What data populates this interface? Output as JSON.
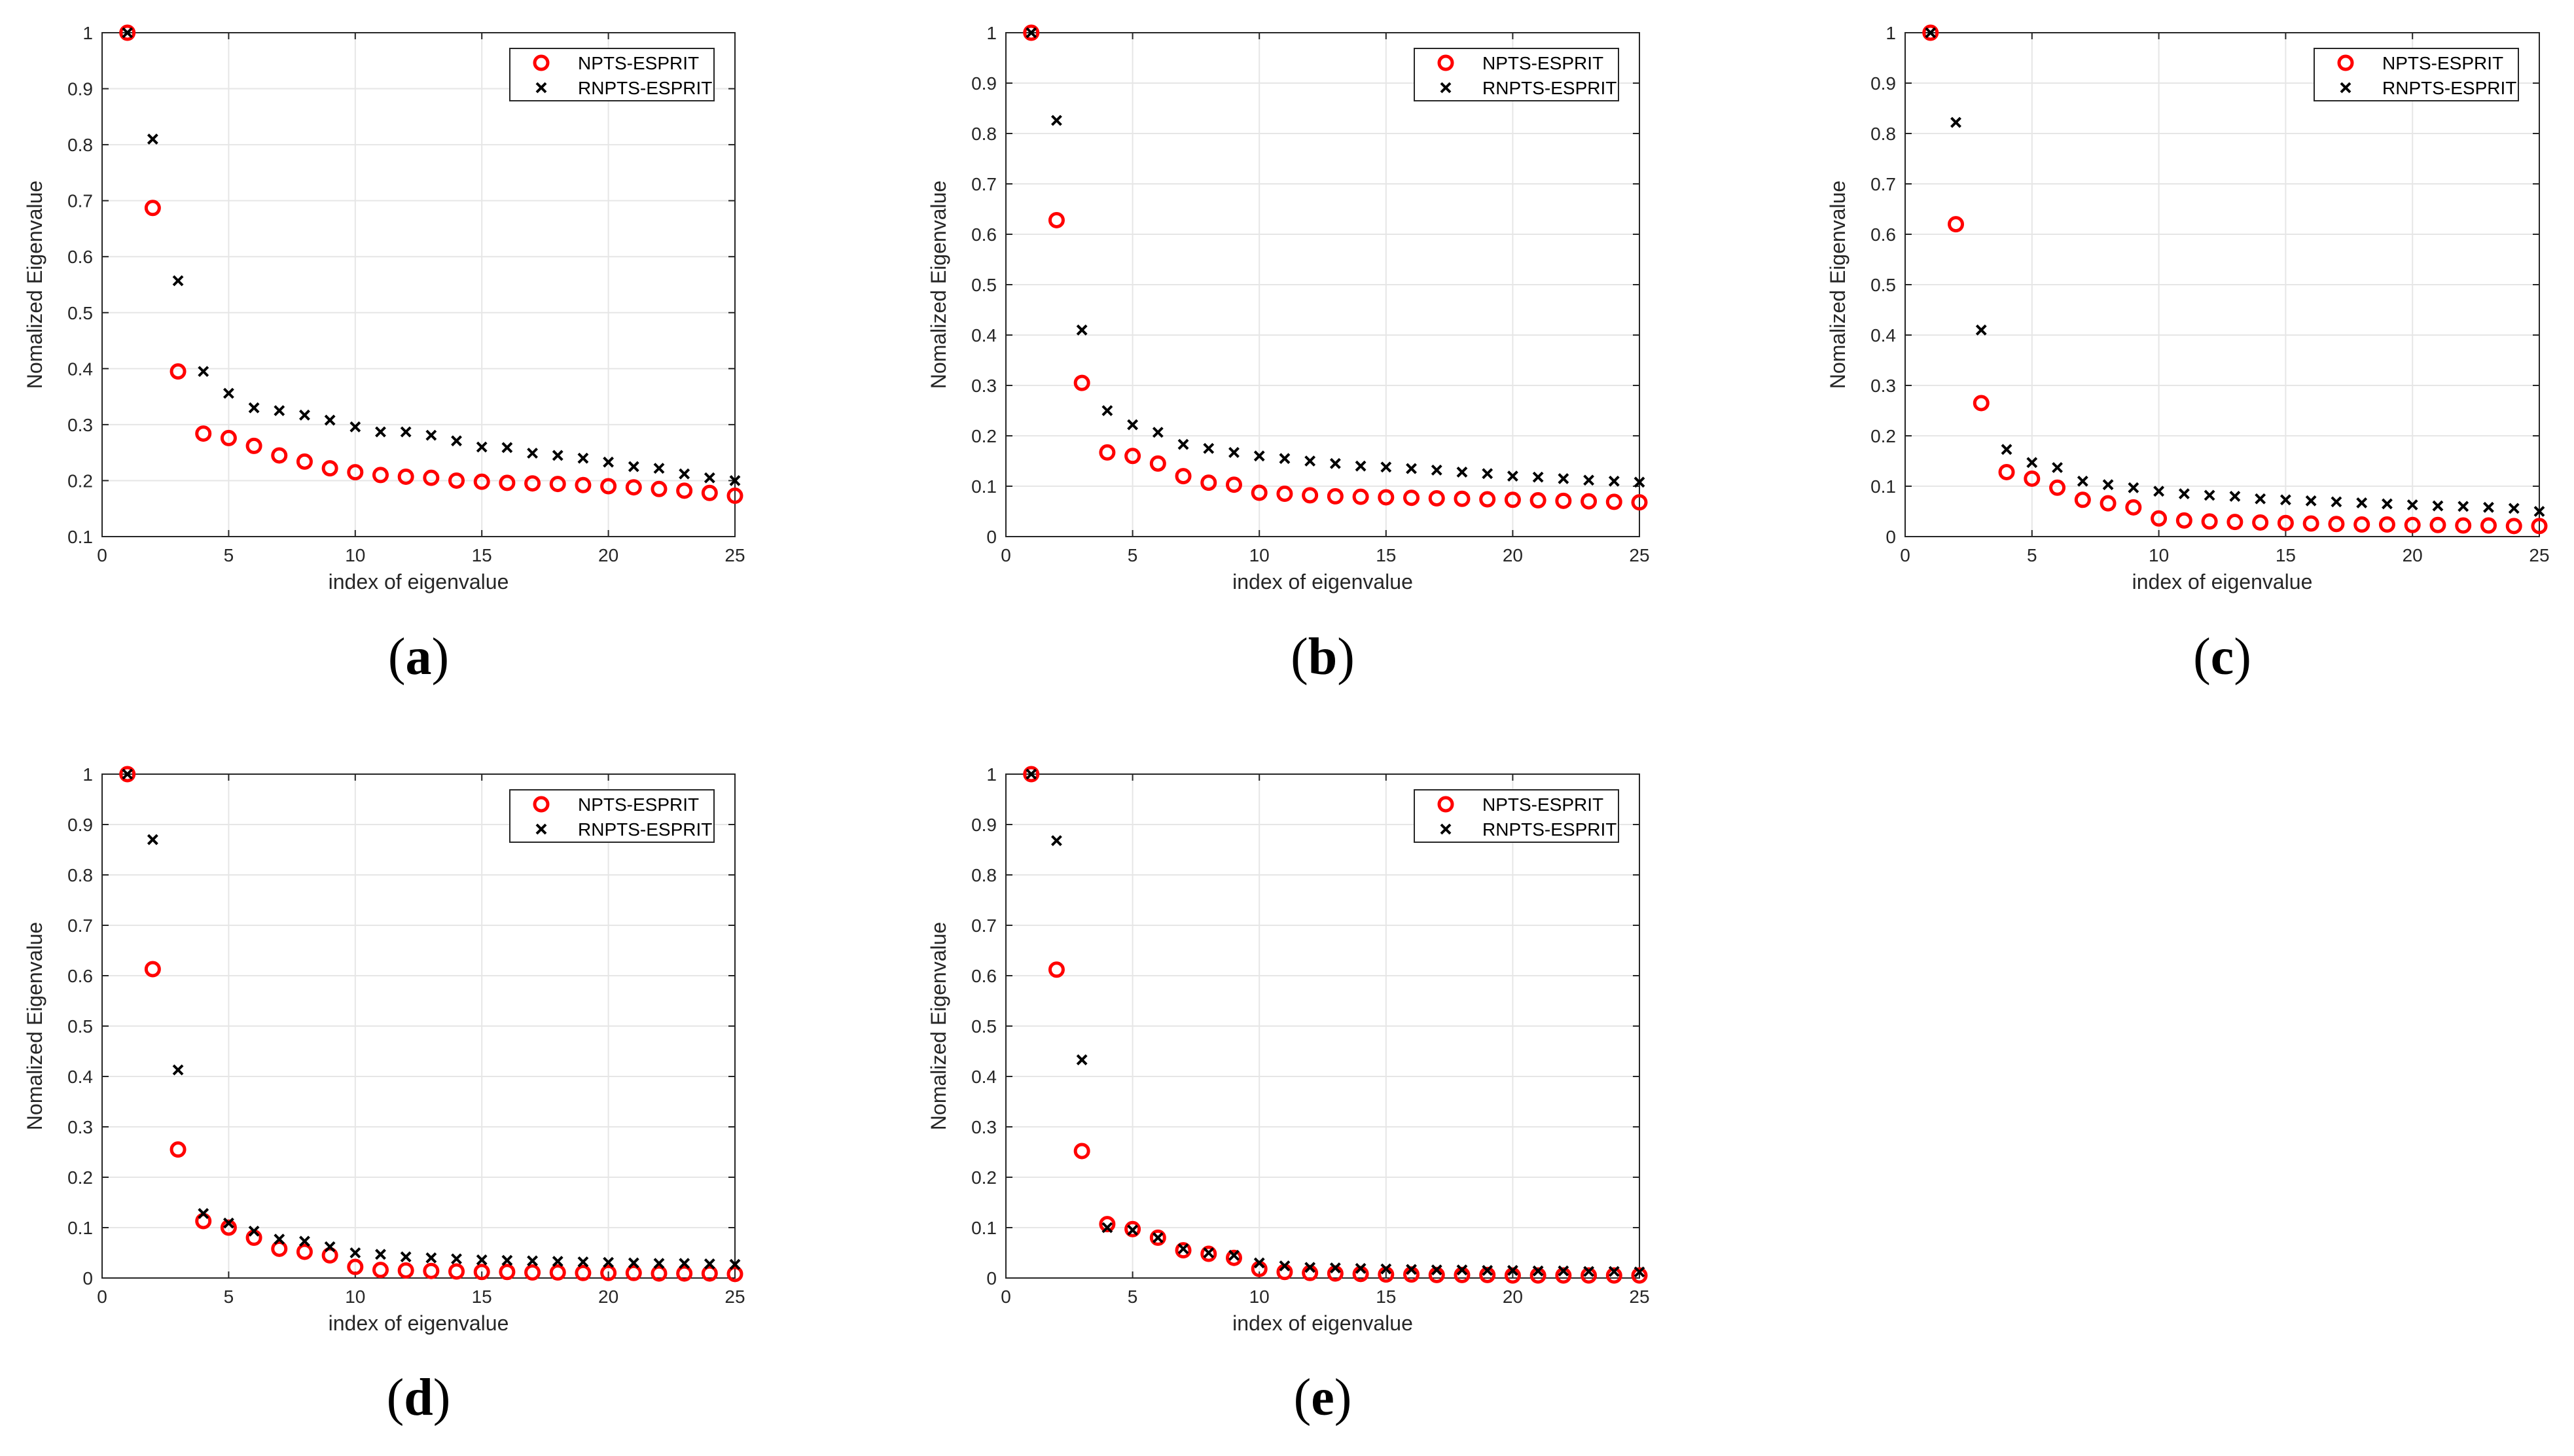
{
  "colors": {
    "npts_marker": "#ff0000",
    "rnpts_marker": "#000000",
    "grid": "#e6e6e6",
    "axes": "#262626"
  },
  "chart_data": [
    {
      "type": "scatter",
      "panel_label": "a",
      "xlabel": "index of eigenvalue",
      "ylabel": "Nomalized Eigenvalue",
      "xlim": [
        0,
        25
      ],
      "ylim": [
        0.1,
        1
      ],
      "xticks": [
        0,
        5,
        10,
        15,
        20,
        25
      ],
      "yticks": [
        0.1,
        0.2,
        0.3,
        0.4,
        0.5,
        0.6,
        0.7,
        0.8,
        0.9,
        1
      ],
      "grid": true,
      "legend_position": "top-right",
      "x": [
        1,
        2,
        3,
        4,
        5,
        6,
        7,
        8,
        9,
        10,
        11,
        12,
        13,
        14,
        15,
        16,
        17,
        18,
        19,
        20,
        21,
        22,
        23,
        24,
        25
      ],
      "series": [
        {
          "name": "NPTS-ESPRIT",
          "marker": "circle",
          "values": [
            1.0,
            0.687,
            0.395,
            0.284,
            0.276,
            0.262,
            0.245,
            0.234,
            0.222,
            0.215,
            0.21,
            0.207,
            0.205,
            0.2,
            0.198,
            0.196,
            0.195,
            0.194,
            0.192,
            0.19,
            0.188,
            0.185,
            0.182,
            0.178,
            0.173
          ]
        },
        {
          "name": "RNPTS-ESPRIT",
          "marker": "x",
          "values": [
            1.0,
            0.81,
            0.557,
            0.395,
            0.356,
            0.33,
            0.325,
            0.317,
            0.308,
            0.296,
            0.287,
            0.287,
            0.281,
            0.271,
            0.26,
            0.259,
            0.249,
            0.245,
            0.24,
            0.233,
            0.225,
            0.222,
            0.212,
            0.205,
            0.2
          ]
        }
      ]
    },
    {
      "type": "scatter",
      "panel_label": "b",
      "xlabel": "index of eigenvalue",
      "ylabel": "Nomalized Eigenvalue",
      "xlim": [
        0,
        25
      ],
      "ylim": [
        0,
        1
      ],
      "xticks": [
        0,
        5,
        10,
        15,
        20,
        25
      ],
      "yticks": [
        0,
        0.1,
        0.2,
        0.3,
        0.4,
        0.5,
        0.6,
        0.7,
        0.8,
        0.9,
        1
      ],
      "grid": true,
      "legend_position": "top-right",
      "x": [
        1,
        2,
        3,
        4,
        5,
        6,
        7,
        8,
        9,
        10,
        11,
        12,
        13,
        14,
        15,
        16,
        17,
        18,
        19,
        20,
        21,
        22,
        23,
        24,
        25
      ],
      "series": [
        {
          "name": "NPTS-ESPRIT",
          "marker": "circle",
          "values": [
            1.0,
            0.628,
            0.305,
            0.167,
            0.16,
            0.145,
            0.12,
            0.107,
            0.103,
            0.087,
            0.085,
            0.082,
            0.08,
            0.079,
            0.078,
            0.077,
            0.076,
            0.075,
            0.074,
            0.073,
            0.072,
            0.071,
            0.07,
            0.069,
            0.068
          ]
        },
        {
          "name": "RNPTS-ESPRIT",
          "marker": "x",
          "values": [
            1.0,
            0.826,
            0.41,
            0.25,
            0.222,
            0.207,
            0.183,
            0.175,
            0.167,
            0.16,
            0.155,
            0.15,
            0.145,
            0.14,
            0.138,
            0.135,
            0.132,
            0.128,
            0.125,
            0.12,
            0.118,
            0.115,
            0.112,
            0.11,
            0.108
          ]
        }
      ]
    },
    {
      "type": "scatter",
      "panel_label": "c",
      "xlabel": "index of eigenvalue",
      "ylabel": "Nomalized Eigenvalue",
      "xlim": [
        0,
        25
      ],
      "ylim": [
        0,
        1
      ],
      "xticks": [
        0,
        5,
        10,
        15,
        20,
        25
      ],
      "yticks": [
        0,
        0.1,
        0.2,
        0.3,
        0.4,
        0.5,
        0.6,
        0.7,
        0.8,
        0.9,
        1
      ],
      "grid": true,
      "legend_position": "top-right",
      "x": [
        1,
        2,
        3,
        4,
        5,
        6,
        7,
        8,
        9,
        10,
        11,
        12,
        13,
        14,
        15,
        16,
        17,
        18,
        19,
        20,
        21,
        22,
        23,
        24,
        25
      ],
      "series": [
        {
          "name": "NPTS-ESPRIT",
          "marker": "circle",
          "values": [
            1.0,
            0.62,
            0.265,
            0.128,
            0.115,
            0.097,
            0.073,
            0.066,
            0.058,
            0.036,
            0.032,
            0.03,
            0.029,
            0.028,
            0.027,
            0.026,
            0.025,
            0.024,
            0.024,
            0.023,
            0.023,
            0.022,
            0.022,
            0.021,
            0.021
          ]
        },
        {
          "name": "RNPTS-ESPRIT",
          "marker": "x",
          "values": [
            1.0,
            0.822,
            0.41,
            0.173,
            0.147,
            0.137,
            0.11,
            0.103,
            0.097,
            0.09,
            0.085,
            0.082,
            0.08,
            0.075,
            0.073,
            0.071,
            0.069,
            0.067,
            0.065,
            0.063,
            0.061,
            0.06,
            0.058,
            0.056,
            0.05
          ]
        }
      ]
    },
    {
      "type": "scatter",
      "panel_label": "d",
      "xlabel": "index of eigenvalue",
      "ylabel": "Nomalized Eigenvalue",
      "xlim": [
        0,
        25
      ],
      "ylim": [
        0,
        1
      ],
      "xticks": [
        0,
        5,
        10,
        15,
        20,
        25
      ],
      "yticks": [
        0,
        0.1,
        0.2,
        0.3,
        0.4,
        0.5,
        0.6,
        0.7,
        0.8,
        0.9,
        1
      ],
      "grid": true,
      "legend_position": "top-right",
      "x": [
        1,
        2,
        3,
        4,
        5,
        6,
        7,
        8,
        9,
        10,
        11,
        12,
        13,
        14,
        15,
        16,
        17,
        18,
        19,
        20,
        21,
        22,
        23,
        24,
        25
      ],
      "series": [
        {
          "name": "NPTS-ESPRIT",
          "marker": "circle",
          "values": [
            1.0,
            0.613,
            0.255,
            0.113,
            0.1,
            0.08,
            0.058,
            0.052,
            0.045,
            0.022,
            0.016,
            0.015,
            0.014,
            0.013,
            0.012,
            0.012,
            0.011,
            0.011,
            0.01,
            0.01,
            0.01,
            0.009,
            0.009,
            0.009,
            0.008
          ]
        },
        {
          "name": "RNPTS-ESPRIT",
          "marker": "x",
          "values": [
            1.0,
            0.87,
            0.413,
            0.128,
            0.109,
            0.093,
            0.077,
            0.073,
            0.062,
            0.05,
            0.047,
            0.042,
            0.04,
            0.038,
            0.036,
            0.035,
            0.034,
            0.033,
            0.032,
            0.031,
            0.03,
            0.029,
            0.029,
            0.028,
            0.027
          ]
        }
      ]
    },
    {
      "type": "scatter",
      "panel_label": "e",
      "xlabel": "index of eigenvalue",
      "ylabel": "Nomalized Eigenvalue",
      "xlim": [
        0,
        25
      ],
      "ylim": [
        0,
        1
      ],
      "xticks": [
        0,
        5,
        10,
        15,
        20,
        25
      ],
      "yticks": [
        0,
        0.1,
        0.2,
        0.3,
        0.4,
        0.5,
        0.6,
        0.7,
        0.8,
        0.9,
        1
      ],
      "grid": true,
      "legend_position": "top-right",
      "x": [
        1,
        2,
        3,
        4,
        5,
        6,
        7,
        8,
        9,
        10,
        11,
        12,
        13,
        14,
        15,
        16,
        17,
        18,
        19,
        20,
        21,
        22,
        23,
        24,
        25
      ],
      "series": [
        {
          "name": "NPTS-ESPRIT",
          "marker": "circle",
          "values": [
            1.0,
            0.612,
            0.252,
            0.107,
            0.097,
            0.08,
            0.055,
            0.048,
            0.04,
            0.018,
            0.012,
            0.01,
            0.009,
            0.008,
            0.007,
            0.007,
            0.006,
            0.006,
            0.006,
            0.005,
            0.005,
            0.005,
            0.005,
            0.005,
            0.005
          ]
        },
        {
          "name": "RNPTS-ESPRIT",
          "marker": "x",
          "values": [
            1.0,
            0.868,
            0.433,
            0.1,
            0.095,
            0.08,
            0.058,
            0.05,
            0.045,
            0.03,
            0.024,
            0.021,
            0.02,
            0.019,
            0.018,
            0.017,
            0.016,
            0.016,
            0.015,
            0.015,
            0.014,
            0.014,
            0.013,
            0.013,
            0.012
          ]
        }
      ]
    }
  ]
}
